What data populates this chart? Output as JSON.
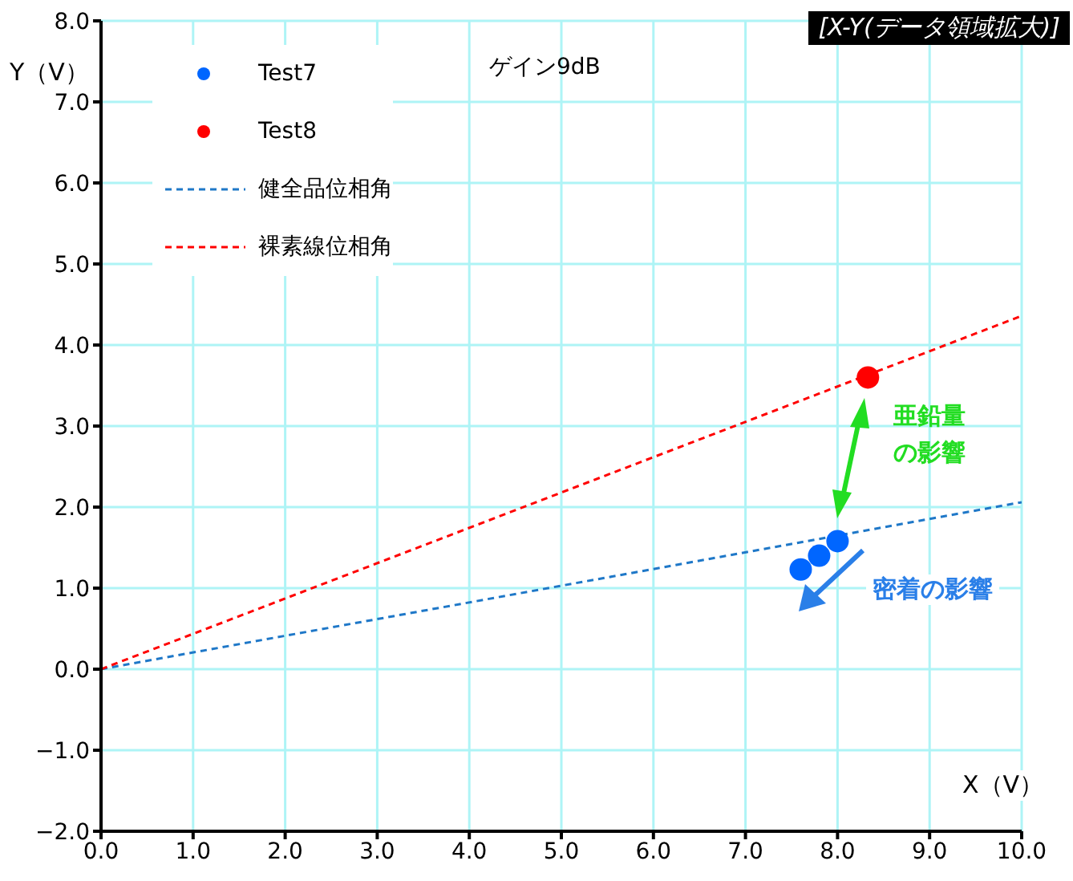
{
  "chart_data": {
    "type": "scatter",
    "title": "[X-Y(データ領域拡大)]",
    "xlabel": "X（V）",
    "ylabel": "Y（V）",
    "annotations": [
      "ゲイン9dB",
      "亜鉛量",
      "の影響",
      "密着の影響"
    ],
    "xlim": [
      0,
      10
    ],
    "ylim": [
      -2,
      8
    ],
    "xticks": [
      {
        "value": 0,
        "label": "0.0"
      },
      {
        "value": 1,
        "label": "1.0"
      },
      {
        "value": 2,
        "label": "2.0"
      },
      {
        "value": 3,
        "label": "3.0"
      },
      {
        "value": 4,
        "label": "4.0"
      },
      {
        "value": 5,
        "label": "5.0"
      },
      {
        "value": 6,
        "label": "6.0"
      },
      {
        "value": 7,
        "label": "7.0"
      },
      {
        "value": 8,
        "label": "8.0"
      },
      {
        "value": 9,
        "label": "9.0"
      },
      {
        "value": 10,
        "label": "10.0"
      }
    ],
    "yticks": [
      {
        "value": -2,
        "label": "−2.0"
      },
      {
        "value": -1,
        "label": "−1.0"
      },
      {
        "value": 0,
        "label": "0.0"
      },
      {
        "value": 1,
        "label": "1.0"
      },
      {
        "value": 2,
        "label": "2.0"
      },
      {
        "value": 3,
        "label": "3.0"
      },
      {
        "value": 4,
        "label": "4.0"
      },
      {
        "value": 5,
        "label": "5.0"
      },
      {
        "value": 6,
        "label": "6.0"
      },
      {
        "value": 7,
        "label": "7.0"
      },
      {
        "value": 8,
        "label": "8.0"
      }
    ],
    "grid": true,
    "legend": "top left",
    "series": [
      {
        "name": "Test7",
        "marker": "circle",
        "color": "#0066ff",
        "x": [
          7.6,
          7.8,
          8.0
        ],
        "values": [
          1.23,
          1.4,
          1.58
        ]
      },
      {
        "name": "Test8",
        "marker": "circle",
        "color": "#ff0000",
        "x": [
          8.33
        ],
        "values": [
          3.6
        ]
      },
      {
        "name": "健全品位相角",
        "type": "line",
        "marker": "none",
        "line_style": "dashed",
        "color": "#1f78c8",
        "x": [
          0,
          10
        ],
        "values": [
          0,
          2.06
        ]
      },
      {
        "name": "裸素線位相角",
        "type": "line",
        "marker": "none",
        "line_style": "dashed",
        "color": "#ff0000",
        "x": [
          0,
          10
        ],
        "values": [
          0,
          4.36
        ]
      }
    ]
  }
}
